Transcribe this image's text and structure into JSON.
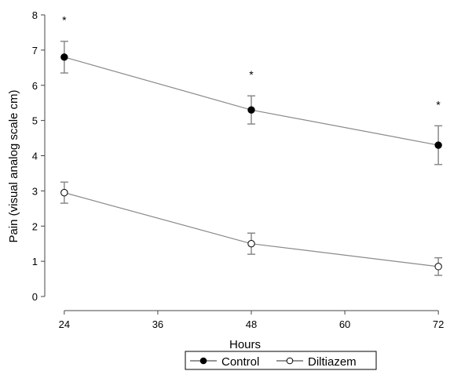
{
  "chart_data": {
    "type": "line",
    "xlabel": "Hours",
    "ylabel": "Pain (visual analog scale cm)",
    "x": [
      24,
      48,
      72
    ],
    "xlim": [
      22,
      74
    ],
    "ylim": [
      0,
      8
    ],
    "xticks": [
      24,
      36,
      48,
      60,
      72
    ],
    "yticks": [
      0,
      1,
      2,
      3,
      4,
      5,
      6,
      7,
      8
    ],
    "grid": false,
    "legend_placement": "bottom",
    "series": [
      {
        "name": "Control",
        "marker": "filled-circle",
        "values": [
          6.8,
          5.3,
          4.3
        ],
        "errors": [
          0.45,
          0.4,
          0.55
        ]
      },
      {
        "name": "Diltiazem",
        "marker": "open-circle",
        "values": [
          2.95,
          1.5,
          0.85
        ],
        "errors": [
          0.3,
          0.3,
          0.25
        ]
      }
    ],
    "annotations": [
      {
        "x": 24,
        "label": "*"
      },
      {
        "x": 48,
        "label": "*"
      },
      {
        "x": 72,
        "label": "*"
      }
    ],
    "colors": {
      "line": "#8a8a8a",
      "errorbar": "#8a8a8a",
      "axis": "#444444",
      "marker": "#000000"
    }
  }
}
